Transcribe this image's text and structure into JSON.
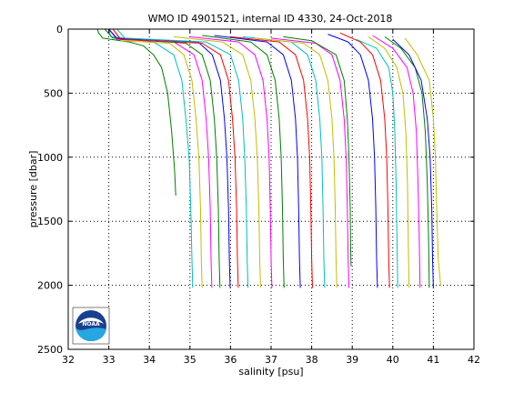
{
  "chart_data": {
    "type": "line",
    "title": "WMO ID 4901521, internal ID 4330, 24-Oct-2018",
    "xlabel": "salinity [psu]",
    "ylabel": "pressure [dbar]",
    "xlim": [
      32,
      42
    ],
    "ylim": [
      0,
      2500
    ],
    "y_reversed": true,
    "grid": true,
    "xticks": [
      32,
      33,
      34,
      35,
      36,
      37,
      38,
      39,
      40,
      41,
      42
    ],
    "yticks": [
      0,
      500,
      1000,
      1500,
      2000,
      2500
    ],
    "xtick_labels": [
      "32",
      "33",
      "34",
      "35",
      "36",
      "37",
      "38",
      "39",
      "40",
      "41",
      "42"
    ],
    "ytick_labels": [
      "0",
      "500",
      "1000",
      "1500",
      "2000",
      "2500"
    ],
    "logo": "noaa-logo",
    "logo_text": "NOAA",
    "series": [
      {
        "color": "#007f00",
        "points": [
          [
            32.72,
            0
          ],
          [
            32.75,
            30
          ],
          [
            32.85,
            70
          ],
          [
            33.5,
            100
          ],
          [
            33.85,
            130
          ],
          [
            34.1,
            200
          ],
          [
            34.3,
            300
          ],
          [
            34.45,
            500
          ],
          [
            34.55,
            800
          ],
          [
            34.62,
            1100
          ],
          [
            34.65,
            1300
          ]
        ]
      },
      {
        "color": "#00bfbf",
        "points": [
          [
            33.0,
            0
          ],
          [
            33.05,
            60
          ],
          [
            34.1,
            100
          ],
          [
            34.6,
            200
          ],
          [
            34.8,
            400
          ],
          [
            34.9,
            700
          ],
          [
            34.98,
            1000
          ],
          [
            35.02,
            1400
          ],
          [
            35.05,
            1800
          ],
          [
            35.07,
            2020
          ]
        ]
      },
      {
        "color": "#bfbf00",
        "points": [
          [
            33.1,
            0
          ],
          [
            33.3,
            90
          ],
          [
            34.5,
            110
          ],
          [
            34.85,
            200
          ],
          [
            35.05,
            400
          ],
          [
            35.15,
            700
          ],
          [
            35.22,
            1000
          ],
          [
            35.26,
            1400
          ],
          [
            35.28,
            1800
          ],
          [
            35.3,
            2020
          ]
        ]
      },
      {
        "color": "#ff00ff",
        "points": [
          [
            33.0,
            0
          ],
          [
            33.2,
            80
          ],
          [
            34.6,
            100
          ],
          [
            35.1,
            200
          ],
          [
            35.3,
            400
          ],
          [
            35.4,
            700
          ],
          [
            35.46,
            1000
          ],
          [
            35.5,
            1400
          ],
          [
            35.52,
            1800
          ],
          [
            35.54,
            2020
          ]
        ]
      },
      {
        "color": "#007f00",
        "points": [
          [
            32.9,
            0
          ],
          [
            33.1,
            70
          ],
          [
            34.9,
            110
          ],
          [
            35.3,
            200
          ],
          [
            35.5,
            400
          ],
          [
            35.6,
            700
          ],
          [
            35.66,
            1000
          ],
          [
            35.7,
            1400
          ],
          [
            35.72,
            1800
          ],
          [
            35.74,
            2020
          ]
        ]
      },
      {
        "color": "#0000ff",
        "points": [
          [
            33.0,
            0
          ],
          [
            33.2,
            70
          ],
          [
            35.2,
            100
          ],
          [
            35.55,
            200
          ],
          [
            35.75,
            400
          ],
          [
            35.85,
            700
          ],
          [
            35.91,
            1000
          ],
          [
            35.95,
            1400
          ],
          [
            35.97,
            1800
          ],
          [
            35.99,
            2020
          ]
        ]
      },
      {
        "color": "#ff0000",
        "points": [
          [
            33.1,
            0
          ],
          [
            33.3,
            80
          ],
          [
            35.3,
            110
          ],
          [
            35.75,
            200
          ],
          [
            35.95,
            400
          ],
          [
            36.05,
            700
          ],
          [
            36.11,
            1000
          ],
          [
            36.15,
            1400
          ],
          [
            36.17,
            1800
          ],
          [
            36.19,
            2020
          ]
        ]
      },
      {
        "color": "#00bfbf",
        "points": [
          [
            33.2,
            0
          ],
          [
            33.4,
            70
          ],
          [
            35.4,
            100
          ],
          [
            36.0,
            200
          ],
          [
            36.2,
            400
          ],
          [
            36.3,
            700
          ],
          [
            36.35,
            1000
          ],
          [
            36.39,
            1400
          ],
          [
            36.41,
            1800
          ],
          [
            36.43,
            2020
          ]
        ]
      },
      {
        "color": "#bfbf00",
        "points": [
          [
            34.6,
            60
          ],
          [
            35.8,
            100
          ],
          [
            36.3,
            200
          ],
          [
            36.5,
            400
          ],
          [
            36.6,
            700
          ],
          [
            36.66,
            1000
          ],
          [
            36.7,
            1400
          ],
          [
            36.72,
            1800
          ],
          [
            36.74,
            2020
          ]
        ]
      },
      {
        "color": "#ff00ff",
        "points": [
          [
            35.0,
            60
          ],
          [
            36.2,
            100
          ],
          [
            36.6,
            200
          ],
          [
            36.8,
            400
          ],
          [
            36.9,
            700
          ],
          [
            36.95,
            1000
          ],
          [
            36.98,
            1400
          ],
          [
            37.0,
            1800
          ],
          [
            37.02,
            2020
          ]
        ]
      },
      {
        "color": "#007f00",
        "points": [
          [
            35.3,
            50
          ],
          [
            36.5,
            100
          ],
          [
            36.9,
            200
          ],
          [
            37.1,
            400
          ],
          [
            37.2,
            700
          ],
          [
            37.25,
            1000
          ],
          [
            37.28,
            1400
          ],
          [
            37.3,
            1800
          ],
          [
            37.32,
            2020
          ]
        ]
      },
      {
        "color": "#0000ff",
        "points": [
          [
            35.6,
            50
          ],
          [
            36.9,
            100
          ],
          [
            37.3,
            200
          ],
          [
            37.5,
            400
          ],
          [
            37.6,
            700
          ],
          [
            37.65,
            1000
          ],
          [
            37.68,
            1400
          ],
          [
            37.7,
            1800
          ],
          [
            37.72,
            2020
          ]
        ]
      },
      {
        "color": "#ff0000",
        "points": [
          [
            36.0,
            60
          ],
          [
            37.2,
            100
          ],
          [
            37.6,
            200
          ],
          [
            37.8,
            400
          ],
          [
            37.9,
            700
          ],
          [
            37.95,
            1000
          ],
          [
            37.98,
            1400
          ],
          [
            38.0,
            1800
          ],
          [
            38.02,
            2020
          ]
        ]
      },
      {
        "color": "#00bfbf",
        "points": [
          [
            36.3,
            60
          ],
          [
            37.5,
            100
          ],
          [
            37.9,
            200
          ],
          [
            38.1,
            400
          ],
          [
            38.2,
            700
          ],
          [
            38.25,
            1000
          ],
          [
            38.28,
            1400
          ],
          [
            38.3,
            1800
          ],
          [
            38.32,
            2020
          ]
        ]
      },
      {
        "color": "#bfbf00",
        "points": [
          [
            36.6,
            70
          ],
          [
            37.8,
            110
          ],
          [
            38.2,
            200
          ],
          [
            38.4,
            400
          ],
          [
            38.5,
            700
          ],
          [
            38.55,
            1000
          ],
          [
            38.58,
            1400
          ],
          [
            38.6,
            1800
          ],
          [
            38.62,
            2020
          ]
        ]
      },
      {
        "color": "#ff00ff",
        "points": [
          [
            37.0,
            70
          ],
          [
            38.1,
            110
          ],
          [
            38.5,
            200
          ],
          [
            38.7,
            400
          ],
          [
            38.8,
            700
          ],
          [
            38.85,
            1000
          ],
          [
            38.88,
            1400
          ],
          [
            38.9,
            1800
          ],
          [
            38.92,
            2020
          ]
        ]
      },
      {
        "color": "#007f00",
        "points": [
          [
            37.3,
            60
          ],
          [
            38.0,
            90
          ],
          [
            38.6,
            200
          ],
          [
            38.8,
            400
          ],
          [
            38.88,
            700
          ],
          [
            38.92,
            1000
          ],
          [
            38.95,
            1400
          ],
          [
            38.96,
            1700
          ],
          [
            38.97,
            1850
          ]
        ]
      },
      {
        "color": "#0000ff",
        "points": [
          [
            38.4,
            40
          ],
          [
            38.9,
            100
          ],
          [
            39.2,
            200
          ],
          [
            39.4,
            400
          ],
          [
            39.5,
            700
          ],
          [
            39.55,
            1000
          ],
          [
            39.58,
            1400
          ],
          [
            39.6,
            1800
          ],
          [
            39.62,
            2020
          ]
        ]
      },
      {
        "color": "#ff0000",
        "points": [
          [
            38.7,
            30
          ],
          [
            39.2,
            100
          ],
          [
            39.5,
            200
          ],
          [
            39.7,
            400
          ],
          [
            39.8,
            700
          ],
          [
            39.85,
            1000
          ],
          [
            39.88,
            1400
          ],
          [
            39.9,
            1800
          ],
          [
            39.92,
            2020
          ]
        ]
      },
      {
        "color": "#00bfbf",
        "points": [
          [
            39.1,
            80
          ],
          [
            39.6,
            150
          ],
          [
            39.9,
            300
          ],
          [
            40.0,
            500
          ],
          [
            40.05,
            800
          ],
          [
            40.08,
            1200
          ],
          [
            40.1,
            1600
          ],
          [
            40.12,
            2020
          ]
        ]
      },
      {
        "color": "#bfbf00",
        "points": [
          [
            39.4,
            60
          ],
          [
            39.8,
            150
          ],
          [
            40.1,
            300
          ],
          [
            40.25,
            500
          ],
          [
            40.32,
            800
          ],
          [
            40.36,
            1200
          ],
          [
            40.38,
            1600
          ],
          [
            40.4,
            2020
          ]
        ]
      },
      {
        "color": "#ff00ff",
        "points": [
          [
            39.5,
            50
          ],
          [
            40.0,
            150
          ],
          [
            40.35,
            300
          ],
          [
            40.5,
            500
          ],
          [
            40.58,
            800
          ],
          [
            40.62,
            1200
          ],
          [
            40.65,
            1600
          ],
          [
            40.67,
            2020
          ]
        ]
      },
      {
        "color": "#007f00",
        "points": [
          [
            39.8,
            60
          ],
          [
            40.2,
            150
          ],
          [
            40.55,
            300
          ],
          [
            40.72,
            500
          ],
          [
            40.8,
            800
          ],
          [
            40.85,
            1200
          ],
          [
            40.88,
            1600
          ],
          [
            40.9,
            2020
          ]
        ]
      },
      {
        "color": "#0000ff",
        "points": [
          [
            40.0,
            80
          ],
          [
            40.4,
            200
          ],
          [
            40.7,
            400
          ],
          [
            40.85,
            700
          ],
          [
            40.92,
            1000
          ],
          [
            40.96,
            1400
          ],
          [
            40.98,
            1800
          ],
          [
            41.0,
            2020
          ]
        ]
      },
      {
        "color": "#bfbf00",
        "points": [
          [
            40.3,
            70
          ],
          [
            40.6,
            200
          ],
          [
            40.9,
            400
          ],
          [
            41.0,
            700
          ],
          [
            41.05,
            1000
          ],
          [
            41.08,
            1400
          ],
          [
            41.12,
            1800
          ],
          [
            41.18,
            2000
          ]
        ]
      }
    ]
  }
}
